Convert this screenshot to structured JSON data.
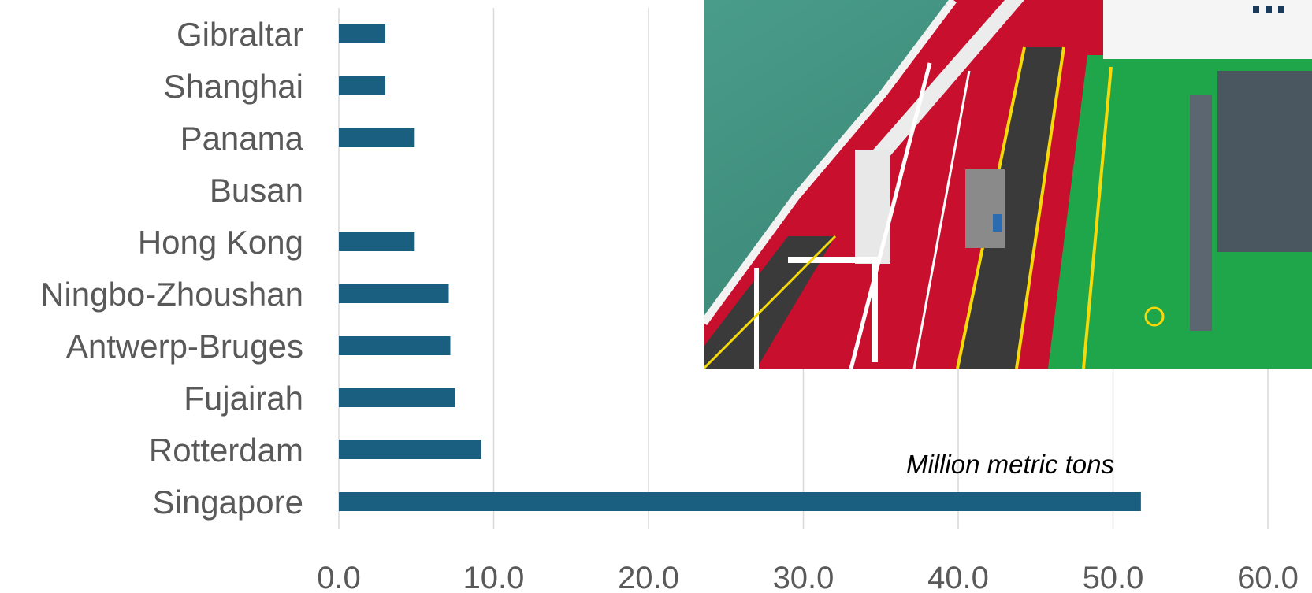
{
  "chart_data": {
    "type": "bar",
    "orientation": "horizontal",
    "categories": [
      "Gibraltar",
      "Shanghai",
      "Panama",
      "Busan",
      "Hong Kong",
      "Ningbo-Zhoushan",
      "Antwerp-Bruges",
      "Fujairah",
      "Rotterdam",
      "Singapore"
    ],
    "values": [
      3.0,
      3.0,
      4.9,
      0,
      4.9,
      7.1,
      7.2,
      7.5,
      9.2,
      51.8
    ],
    "xlim": [
      0,
      60
    ],
    "x_ticks": [
      "0.0",
      "10.0",
      "20.0",
      "30.0",
      "40.0",
      "50.0",
      "60.0"
    ],
    "annotation": "Million metric tons",
    "grid": "vertical",
    "bar_color": "#1a5e80",
    "grid_color": "#d9d9d9",
    "label_color": "#595959"
  },
  "photo": {
    "icon": "ship-deck-photo",
    "sea_color": "#3e8f7e",
    "deck_red": "#c8102e",
    "deck_green": "#1fa64a",
    "walkway_color": "#3a3a3a",
    "pipe_color": "#ffffff",
    "marking_yellow": "#f5d90a"
  }
}
